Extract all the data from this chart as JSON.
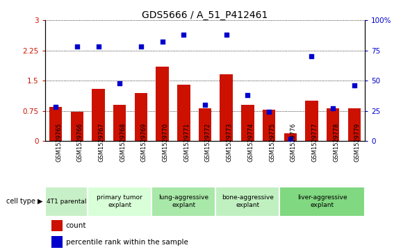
{
  "title": "GDS5666 / A_51_P412461",
  "samples": [
    "GSM1529765",
    "GSM1529766",
    "GSM1529767",
    "GSM1529768",
    "GSM1529769",
    "GSM1529770",
    "GSM1529771",
    "GSM1529772",
    "GSM1529773",
    "GSM1529774",
    "GSM1529775",
    "GSM1529776",
    "GSM1529777",
    "GSM1529778",
    "GSM1529779"
  ],
  "counts": [
    0.85,
    0.72,
    1.3,
    0.9,
    1.2,
    1.85,
    1.4,
    0.82,
    1.65,
    0.9,
    0.78,
    0.2,
    1.0,
    0.82,
    0.82
  ],
  "percentiles": [
    28,
    78,
    78,
    48,
    78,
    82,
    88,
    30,
    88,
    38,
    24,
    2,
    70,
    27,
    46
  ],
  "cell_types": [
    {
      "label": "4T1 parental",
      "start": 0,
      "end": 2,
      "color": "#c8f0c8"
    },
    {
      "label": "primary tumor\nexplant",
      "start": 2,
      "end": 5,
      "color": "#d8ffd8"
    },
    {
      "label": "lung-aggressive\nexplant",
      "start": 5,
      "end": 8,
      "color": "#a8e8a8"
    },
    {
      "label": "bone-aggressive\nexplant",
      "start": 8,
      "end": 11,
      "color": "#c0f0c0"
    },
    {
      "label": "liver-aggressive\nexplant",
      "start": 11,
      "end": 15,
      "color": "#80d880"
    }
  ],
  "ylim_left": [
    0,
    3
  ],
  "ylim_right": [
    0,
    100
  ],
  "yticks_left": [
    0,
    0.75,
    1.5,
    2.25,
    3
  ],
  "ytick_labels_left": [
    "0",
    "0.75",
    "1.5",
    "2.25",
    "3"
  ],
  "yticks_right": [
    0,
    25,
    50,
    75,
    100
  ],
  "ytick_labels_right": [
    "0",
    "25",
    "50",
    "75",
    "100%"
  ],
  "bar_color": "#cc1100",
  "dot_color": "#0000cc",
  "tick_bg_color": "#d8d8d8",
  "plot_bg": "#ffffff",
  "title_fontsize": 10,
  "legend_count_label": "count",
  "legend_pct_label": "percentile rank within the sample",
  "cell_type_label": "cell type"
}
